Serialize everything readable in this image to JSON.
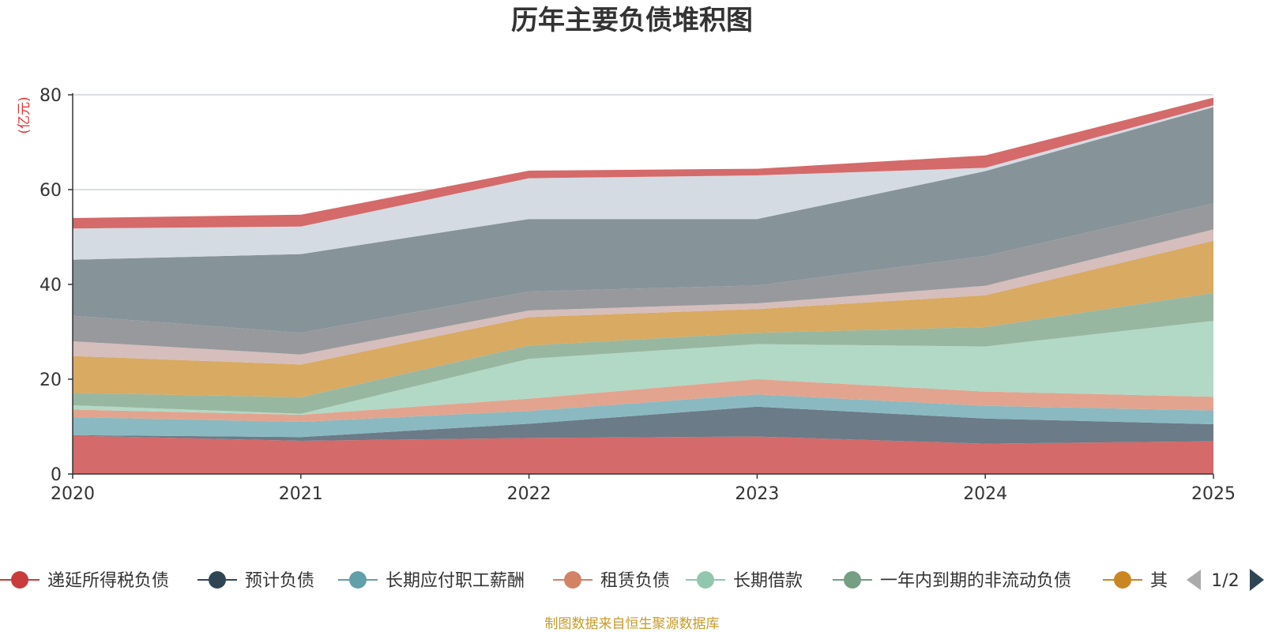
{
  "chart_data": {
    "type": "area",
    "stacked": true,
    "title": "历年主要负债堆积图",
    "ylabel": "(亿元)",
    "xlabel": "",
    "x": [
      "2020",
      "2021",
      "2022",
      "2023",
      "2024",
      "2025"
    ],
    "ylim": [
      0,
      80
    ],
    "yticks": [
      "0",
      "20",
      "40",
      "60",
      "80"
    ],
    "grid": true,
    "series": [
      {
        "name": "递延所得税负债",
        "color": "#d46a6a",
        "values": [
          8.1,
          7.0,
          7.6,
          7.9,
          6.4,
          6.9
        ],
        "in_legend": true
      },
      {
        "name": "预计负债",
        "color": "#6b7b87",
        "values": [
          0.1,
          0.8,
          3.0,
          6.3,
          5.3,
          3.6
        ],
        "in_legend": true
      },
      {
        "name": "长期应付职工薪酬",
        "color": "#8ab9c1",
        "values": [
          3.8,
          3.2,
          2.7,
          2.6,
          2.7,
          2.9
        ],
        "in_legend": true
      },
      {
        "name": "租赁负债",
        "color": "#e2a48f",
        "values": [
          1.6,
          1.5,
          2.6,
          3.2,
          3.0,
          2.9
        ],
        "in_legend": true
      },
      {
        "name": "长期借款",
        "color": "#b1d9c6",
        "values": [
          0.9,
          0.2,
          8.4,
          7.4,
          9.5,
          16.0
        ],
        "in_legend": true
      },
      {
        "name": "一年内到期的非流动负债",
        "color": "#98b7a1",
        "values": [
          2.6,
          3.5,
          2.8,
          2.4,
          4.1,
          5.9
        ],
        "in_legend": true
      },
      {
        "name": "其",
        "color": "#d8aa62",
        "values": [
          7.8,
          6.9,
          6.0,
          5.0,
          6.7,
          11.0
        ],
        "in_legend": true
      },
      {
        "name": "",
        "color": "#d5bebc",
        "values": [
          3.1,
          2.1,
          1.4,
          1.2,
          2.0,
          2.4
        ],
        "in_legend": false
      },
      {
        "name": "",
        "color": "#98999c",
        "values": [
          5.4,
          4.6,
          4.0,
          3.8,
          6.3,
          5.5
        ],
        "in_legend": false
      },
      {
        "name": "",
        "color": "#869399",
        "values": [
          11.8,
          16.6,
          15.3,
          14.0,
          17.9,
          20.3
        ],
        "in_legend": false
      },
      {
        "name": "",
        "color": "#d5dbe2",
        "values": [
          6.6,
          5.8,
          8.6,
          9.2,
          0.7,
          0.4
        ],
        "in_legend": false
      },
      {
        "name": "",
        "color": "#d46a6a",
        "values": [
          2.2,
          2.5,
          1.6,
          1.4,
          2.6,
          1.6
        ],
        "in_legend": false
      }
    ]
  },
  "legend": {
    "items": [
      {
        "label": "递延所得税负债",
        "color": "#c93c3c"
      },
      {
        "label": "预计负债",
        "color": "#2f4554"
      },
      {
        "label": "长期应付职工薪酬",
        "color": "#61a0a8"
      },
      {
        "label": "租赁负债",
        "color": "#d48265"
      },
      {
        "label": "长期借款",
        "color": "#91c7ae"
      },
      {
        "label": "一年内到期的非流动负债",
        "color": "#749f83"
      },
      {
        "label": "其",
        "color": "#ca8622"
      }
    ],
    "page": "1/2",
    "prev_icon": "triangle-left-icon",
    "next_icon": "triangle-right-icon"
  },
  "source_note": "制图数据来自恒生聚源数据库"
}
